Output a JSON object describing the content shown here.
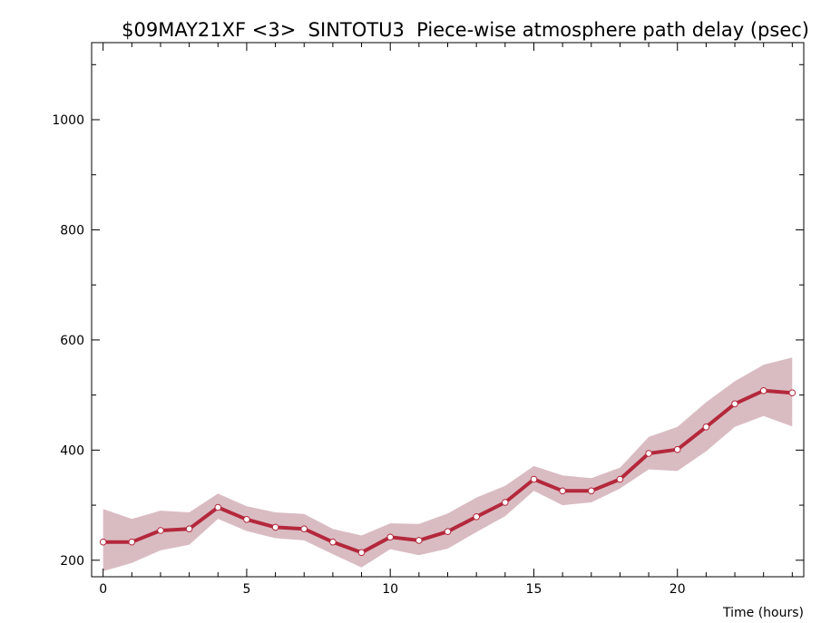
{
  "chart_data": {
    "type": "line",
    "title": "$09MAY21XF <3>  SINTOTU3  Piece-wise atmosphere path delay (psec)",
    "xlabel": "Time (hours)",
    "ylabel": "",
    "xlim": [
      -0.4,
      24.4
    ],
    "ylim": [
      170,
      1140
    ],
    "x_ticks": [
      0,
      5,
      10,
      15,
      20
    ],
    "y_ticks": [
      200,
      400,
      600,
      800,
      1000
    ],
    "x_minor_step": 1,
    "y_minor_step": 100,
    "grid": false,
    "colors": {
      "line": "#b4283c",
      "band": "#d9bcc2",
      "marker_fill": "#ffffff",
      "marker_stroke": "#b4283c",
      "axis": "#000000"
    },
    "series": [
      {
        "x": [
          0,
          1,
          2,
          3,
          4,
          5,
          6,
          7,
          8,
          9,
          10,
          11,
          12,
          13,
          14,
          15,
          16,
          17,
          18,
          19,
          20,
          21,
          22,
          23,
          24
        ],
        "values": [
          233,
          233,
          254,
          257,
          296,
          274,
          260,
          257,
          233,
          214,
          242,
          236,
          252,
          279,
          305,
          347,
          326,
          326,
          347,
          394,
          401,
          442,
          484,
          508,
          504
        ],
        "upper": [
          293,
          275,
          290,
          287,
          321,
          298,
          287,
          284,
          257,
          245,
          267,
          266,
          285,
          314,
          335,
          371,
          354,
          349,
          368,
          424,
          442,
          487,
          525,
          555,
          568
        ],
        "lower": [
          180,
          195,
          218,
          228,
          275,
          253,
          240,
          236,
          211,
          187,
          220,
          209,
          221,
          251,
          280,
          326,
          300,
          305,
          330,
          365,
          362,
          398,
          442,
          462,
          443
        ]
      }
    ]
  }
}
